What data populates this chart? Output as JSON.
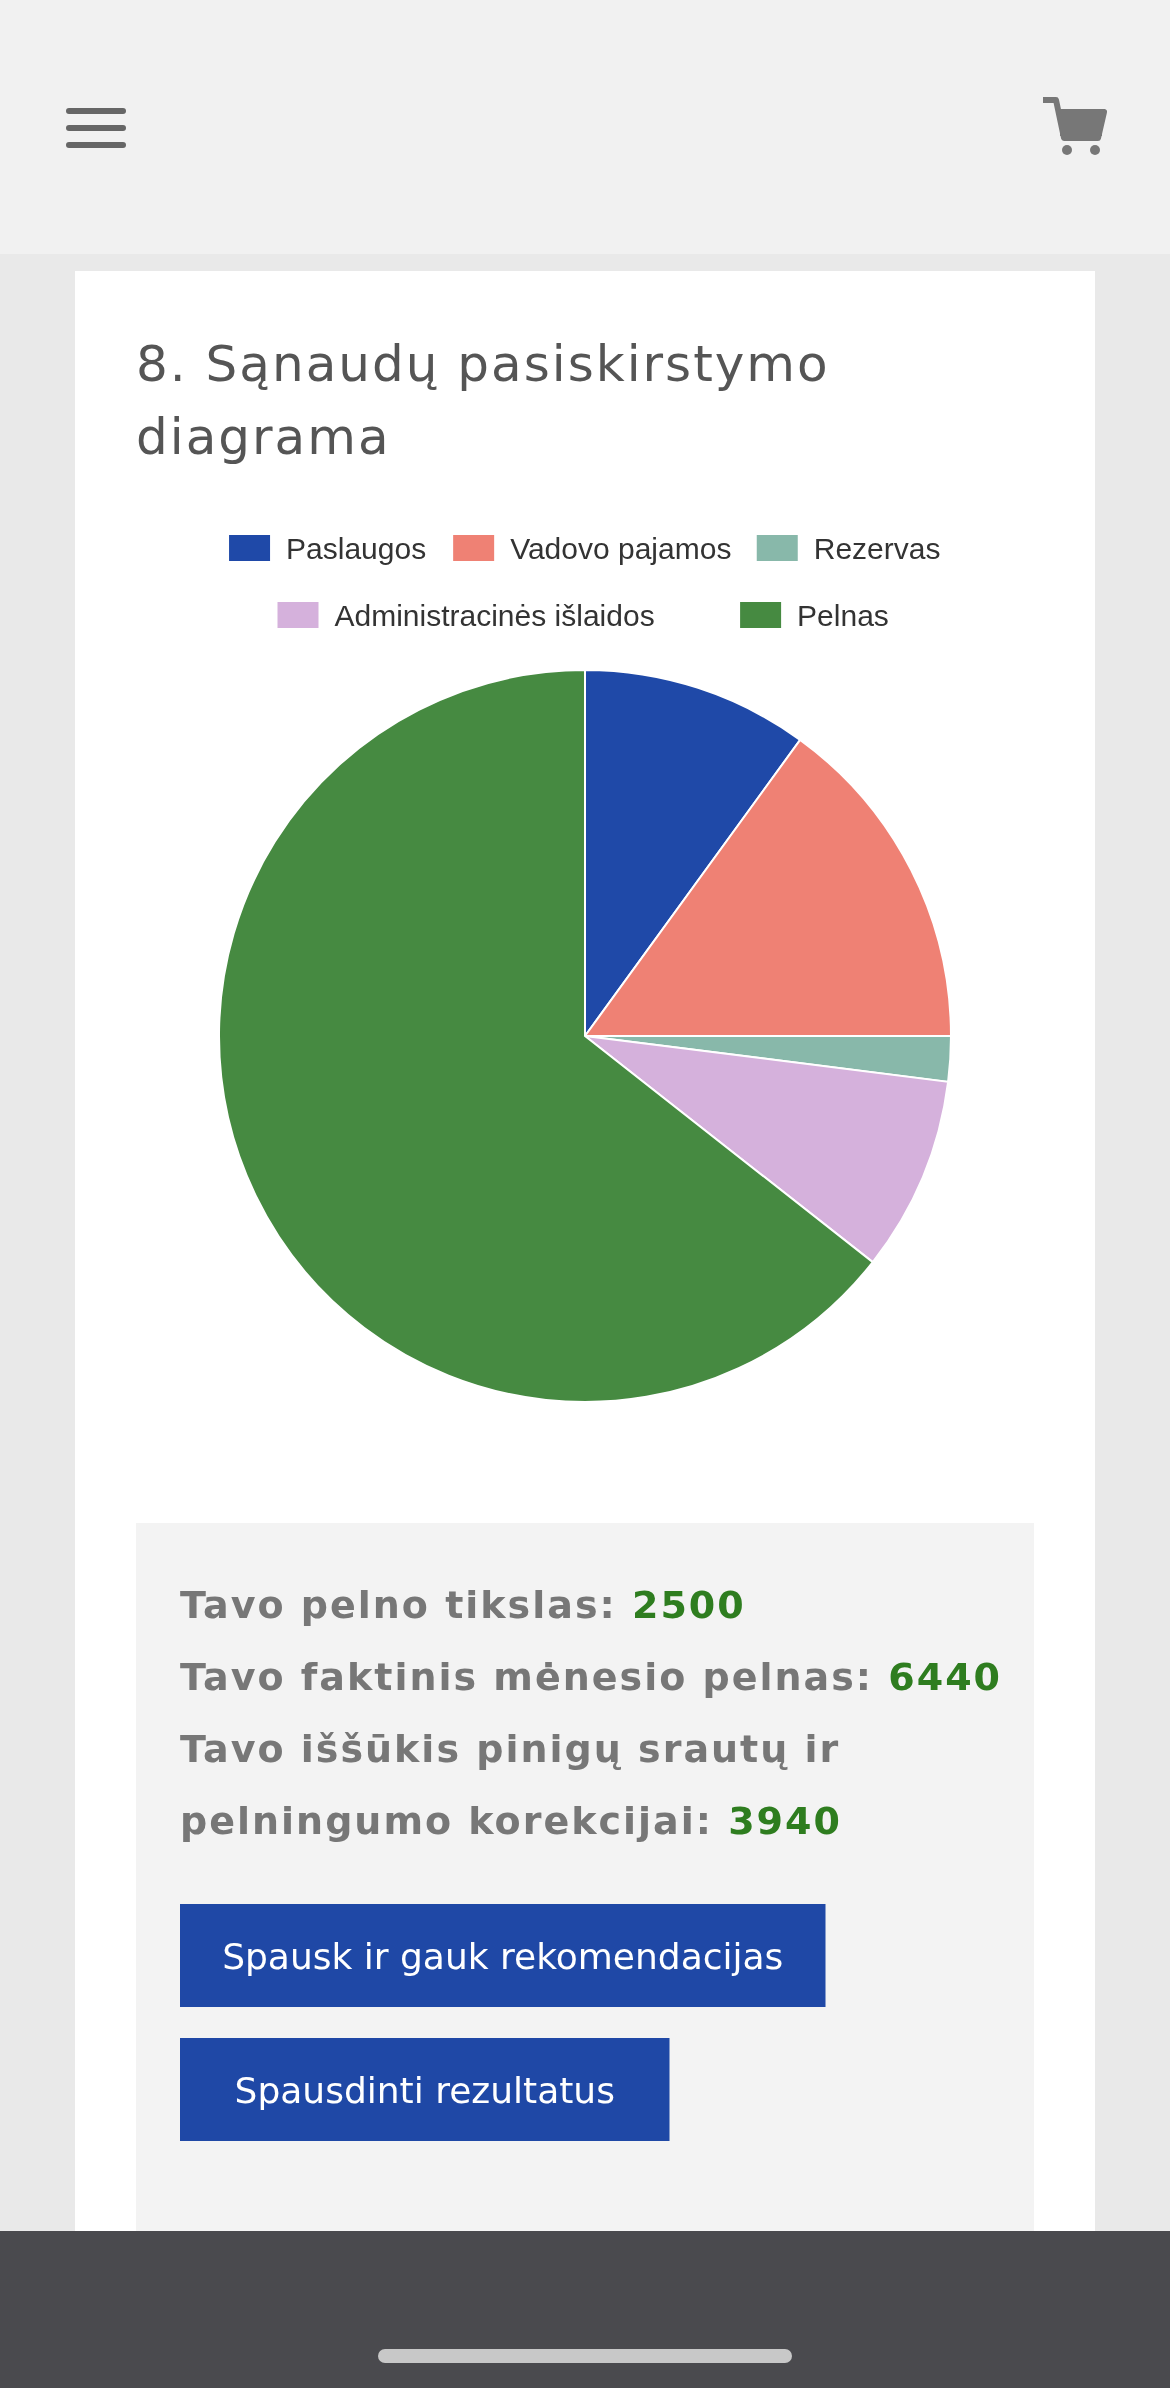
{
  "chart_data": {
    "type": "pie",
    "title": "8. Sąnaudų pasiskirstymo diagrama",
    "categories": [
      "Paslaugos",
      "Vadovo pajamos",
      "Rezervas",
      "Administracinės išlaidos",
      "Pelnas"
    ],
    "values": [
      10,
      15,
      2,
      8.6,
      64.4
    ],
    "colors": [
      "#1f49a8",
      "#ef8174",
      "#88b8aa",
      "#d5b1dc",
      "#468a41"
    ],
    "legend": "top",
    "annotations": [
      "Tavo pelno tikslas: 2500",
      "Tavo faktinis mėnesio pelnas: 6440",
      "Tavo iššūkis pinigų srautų ir pelningumo korekcijai: 3940",
      "Spausk ir gauk rekomendacijas",
      "Spausdinti rezultatus"
    ]
  }
}
